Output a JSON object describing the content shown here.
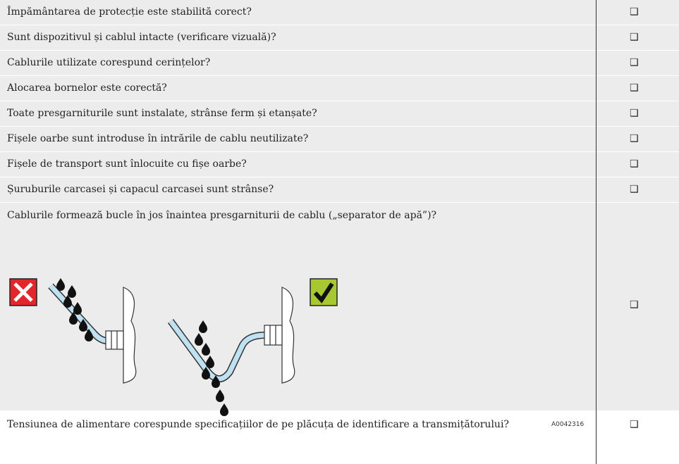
{
  "table": {
    "rows": [
      {
        "text": "Împământarea de protecție este stabilită corect?",
        "check": "❑"
      },
      {
        "text": "Sunt dispozitivul și cablul intacte (verificare vizuală)?",
        "check": "❑"
      },
      {
        "text": "Cablurile utilizate corespund cerințelor?",
        "check": "❑"
      },
      {
        "text": "Alocarea bornelor este corectă?",
        "check": "❑"
      },
      {
        "text": "Toate presgarniturile sunt instalate, strânse ferm și etanșate?",
        "check": "❑"
      },
      {
        "text": "Fișele oarbe sunt introduse în intrările de cablu neutilizate?",
        "check": "❑"
      },
      {
        "text": "Fișele de transport sunt înlocuite cu fișe oarbe?",
        "check": "❑"
      },
      {
        "text": "Șuruburile carcasei și capacul carcasei sunt strânse?",
        "check": "❑"
      },
      {
        "text": "Cablurile formează bucle în jos înaintea presgarniturii de cablu („separator de apă”)?",
        "check": "❑",
        "figure_id": "A0042316"
      },
      {
        "text": "Tensiunea de alimentare corespunde specificațiilor de pe plăcuța de identificare a transmițătorului?",
        "check": "❑"
      }
    ]
  }
}
